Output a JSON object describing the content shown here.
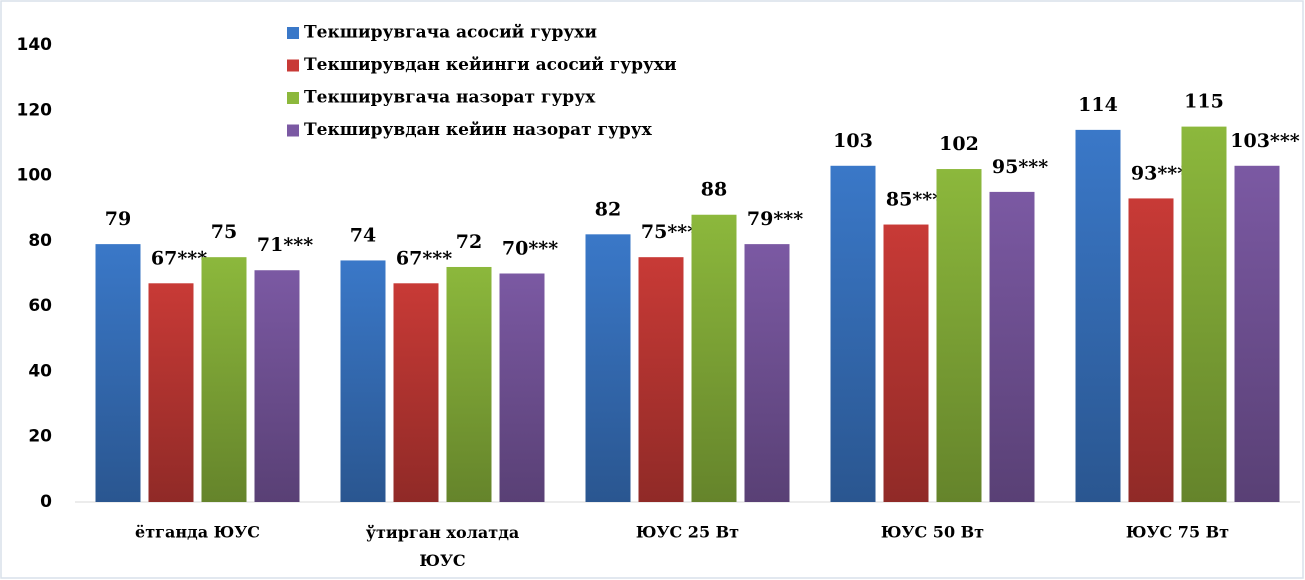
{
  "chart_data": {
    "type": "bar",
    "categories": [
      "ётганда ЮУС",
      "ўтирган холатда ЮУС",
      "ЮУС  25 Вт",
      "ЮУС 50 Вт",
      "ЮУС  75 Вт"
    ],
    "series": [
      {
        "name": "Текширувгача асосий гурухи",
        "color": "#3a78c8",
        "values": [
          79,
          74,
          82,
          103,
          114
        ]
      },
      {
        "name": "Текширувдан кейинги асосий гурухи",
        "color": "#c83a36",
        "values": [
          67,
          67,
          75,
          85,
          93
        ],
        "value_labels": [
          "67***",
          "67***",
          "75***",
          "85***",
          "93***"
        ]
      },
      {
        "name": "Текширувгача назорат гурух",
        "color": "#8cb83c",
        "values": [
          75,
          72,
          88,
          102,
          115
        ]
      },
      {
        "name": "Текширувдан кейин назорат гурух",
        "color": "#7b59a3",
        "values": [
          71,
          70,
          79,
          95,
          103
        ],
        "value_labels": [
          "71***",
          "70***",
          "79***",
          "95***",
          "103***"
        ]
      }
    ],
    "ylim": [
      0,
      140
    ],
    "yticks": [
      0,
      20,
      40,
      60,
      80,
      100,
      120,
      140
    ],
    "grid": false
  }
}
